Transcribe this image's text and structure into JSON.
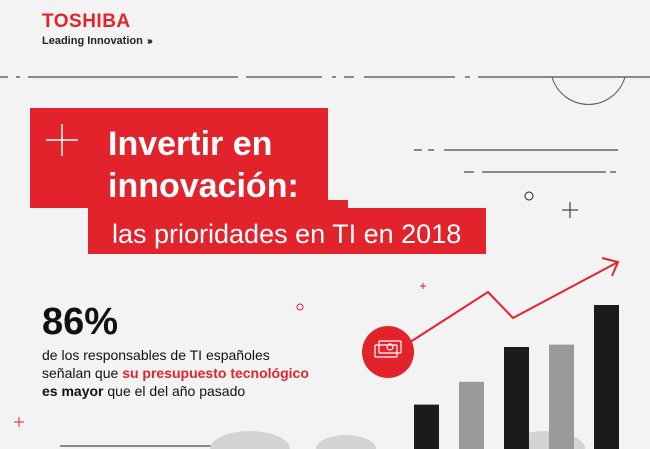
{
  "brand": {
    "name": "TOSHIBA",
    "tagline": "Leading Innovation",
    "tagline_chevrons": "›››"
  },
  "title": {
    "line1": "Invertir en",
    "line2": "innovación:",
    "line3": "las prioridades en TI en 2018"
  },
  "stat": {
    "value": "86%",
    "text_1": "de los responsables de TI españoles",
    "text_2": "señalan que ",
    "highlight": "su presupuesto tecnológico",
    "bold": "es mayor",
    "text_3": " que el del año pasado"
  },
  "colors": {
    "accent": "#e3232b",
    "dark": "#1b1b1b",
    "gray": "#9a9a9a",
    "background": "#f3f3f3"
  },
  "icons": [
    "plus-icon",
    "money-icon",
    "growth-arrow-icon"
  ],
  "chart_data": {
    "type": "bar",
    "categories": [
      "",
      "",
      "",
      "",
      "",
      "",
      "",
      ""
    ],
    "values": [
      0.37,
      0.56,
      0.85,
      0.87,
      1.2,
      0,
      0,
      0
    ],
    "bar_colors": [
      "#1b1b1b",
      "#9a9a9a",
      "#1b1b1b",
      "#9a9a9a",
      "#1b1b1b"
    ],
    "trend": "upward arrow"
  }
}
